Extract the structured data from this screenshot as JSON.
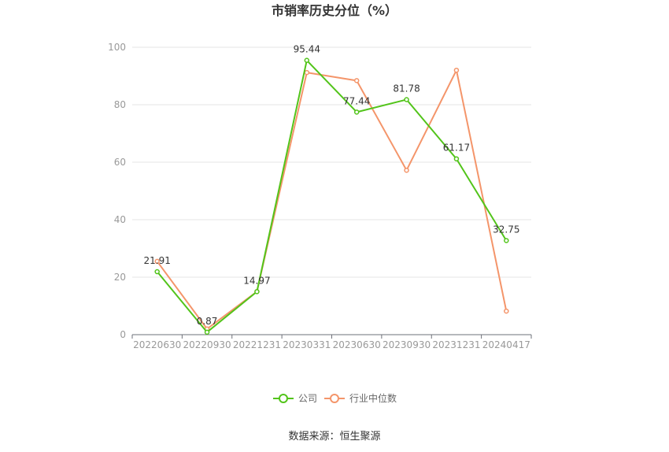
{
  "chart_data": {
    "type": "line",
    "title": "市销率历史分位（%）",
    "categories": [
      "20220630",
      "20220930",
      "20221231",
      "20230331",
      "20230630",
      "20230930",
      "20231231",
      "20240417"
    ],
    "ylim": [
      0,
      100
    ],
    "yticks": [
      "0",
      "20",
      "40",
      "60",
      "80",
      "100"
    ],
    "grid": true,
    "legend_position": "bottom",
    "series": [
      {
        "name": "公司",
        "color": "#52c41a",
        "values": [
          21.91,
          0.87,
          14.97,
          95.44,
          77.44,
          81.78,
          61.17,
          32.75
        ],
        "labels": [
          "21.91",
          "0.87",
          "14.97",
          "95.44",
          "77.44",
          "81.78",
          "61.17",
          "32.75"
        ]
      },
      {
        "name": "行业中位数",
        "color": "#f4956a",
        "values": [
          25.5,
          2.0,
          15.0,
          91.2,
          88.4,
          57.2,
          92.0,
          8.2
        ]
      }
    ]
  },
  "footer": {
    "source": "数据来源：恒生聚源"
  }
}
